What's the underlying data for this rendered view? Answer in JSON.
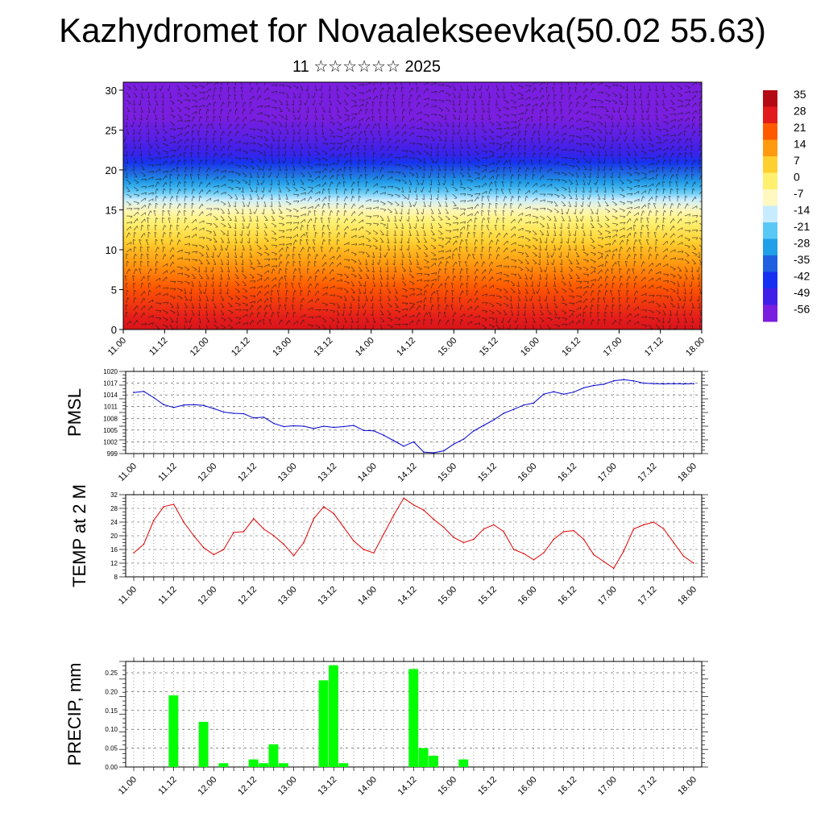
{
  "page": {
    "title": "Kazhydromet for Novaalekseevka(50.02 55.63)",
    "subtitle": "11 ☆☆☆☆☆☆ 2025"
  },
  "time_ticks": [
    "11.00",
    "11.12",
    "12.00",
    "12.12",
    "13.00",
    "13.12",
    "14.00",
    "14.12",
    "15.00",
    "15.12",
    "16.00",
    "16.12",
    "17.00",
    "17.12",
    "18.00"
  ],
  "chart_data": [
    {
      "type": "heatmap",
      "x_ticks": [
        "11.00",
        "11.12",
        "12.00",
        "12.12",
        "13.00",
        "13.12",
        "14.00",
        "14.12",
        "15.00",
        "15.12",
        "16.00",
        "16.12",
        "17.00",
        "17.12",
        "18.00"
      ],
      "y_ticks": [
        "0",
        "5",
        "10",
        "15",
        "20",
        "25",
        "30"
      ],
      "ylim": [
        0,
        31
      ],
      "colorbar_labels": [
        "35",
        "28",
        "21",
        "14",
        "7",
        "0",
        "-7",
        "-14",
        "-21",
        "-28",
        "-35",
        "-42",
        "-49",
        "-56"
      ],
      "color_stops": [
        "#b40a14",
        "#e31a1c",
        "#ff5a00",
        "#ff9a10",
        "#ffd030",
        "#fff070",
        "#fff8c0",
        "#c8ecff",
        "#5ac8f5",
        "#20a0e8",
        "#2060e0",
        "#1530f0",
        "#4020e8",
        "#7a1ee0"
      ],
      "height_profile": [
        {
          "level": 0,
          "value": 30
        },
        {
          "level": 5,
          "value": 22
        },
        {
          "level": 10,
          "value": 10
        },
        {
          "level": 14,
          "value": -2
        },
        {
          "level": 16,
          "value": -12
        },
        {
          "level": 18,
          "value": -26
        },
        {
          "level": 20,
          "value": -36
        },
        {
          "level": 22,
          "value": -48
        },
        {
          "level": 24,
          "value": -52
        },
        {
          "level": 26,
          "value": -55
        },
        {
          "level": 28,
          "value": -60
        },
        {
          "level": 31,
          "value": -62
        }
      ]
    },
    {
      "type": "line",
      "ylabel": "PMSL",
      "ylim": [
        999,
        1020
      ],
      "y_ticks": [
        999,
        1002,
        1005,
        1008,
        1011,
        1014,
        1017,
        1020
      ],
      "color": "#0000cc",
      "series": [
        {
          "values": [
            1014.6,
            1014.9,
            1013.3,
            1011.5,
            1010.8,
            1011.4,
            1011.5,
            1011.3,
            1010.5,
            1009.6,
            1009.3,
            1009.2,
            1008.1,
            1008.3,
            1006.7,
            1005.9,
            1006.1,
            1006.0,
            1005.4,
            1006.0,
            1005.7,
            1005.9,
            1006.2,
            1004.9,
            1004.8,
            1003.7,
            1002.3,
            1000.9,
            1002.0,
            999.4,
            999.2,
            999.7,
            1001.4,
            1002.7,
            1004.8,
            1006.2,
            1007.6,
            1009.3,
            1010.3,
            1011.4,
            1011.9,
            1014.2,
            1014.8,
            1014.2,
            1014.7,
            1015.8,
            1016.4,
            1016.7,
            1017.6,
            1017.9,
            1017.6,
            1017.0,
            1016.9,
            1016.8,
            1016.9,
            1016.8,
            1016.9
          ]
        }
      ]
    },
    {
      "type": "line",
      "ylabel": "TEMP at 2 M",
      "ylim": [
        8,
        32
      ],
      "y_ticks": [
        8,
        12,
        16,
        20,
        24,
        28,
        32
      ],
      "color": "#e00000",
      "series": [
        {
          "values": [
            15.0,
            17.5,
            24.5,
            28.5,
            29.2,
            24.0,
            20.0,
            16.5,
            14.5,
            16.0,
            21.0,
            21.2,
            25.0,
            22.0,
            20.0,
            17.5,
            14.2,
            18.0,
            25.0,
            28.5,
            26.5,
            22.5,
            18.5,
            16.0,
            15.0,
            20.5,
            26.0,
            31.0,
            29.0,
            27.5,
            24.8,
            22.5,
            19.5,
            18.0,
            19.0,
            22.0,
            23.2,
            21.2,
            16.0,
            14.8,
            13.0,
            15.0,
            19.0,
            21.2,
            21.5,
            19.0,
            14.5,
            12.5,
            10.5,
            15.5,
            22.0,
            23.2,
            24.0,
            22.0,
            18.0,
            14.0,
            12.0
          ]
        }
      ]
    },
    {
      "type": "bar",
      "ylabel": "PRECIP, mm",
      "ylim": [
        0,
        0.28
      ],
      "y_ticks": [
        "0.00",
        "0.05",
        "0.10",
        "0.15",
        "0.20",
        "0.25"
      ],
      "color": "#00ff00",
      "values": [
        0,
        0,
        0,
        0,
        0.19,
        0,
        0,
        0.12,
        0,
        0.01,
        0,
        0,
        0.02,
        0.01,
        0.06,
        0.01,
        0,
        0,
        0,
        0.23,
        0.27,
        0.01,
        0,
        0,
        0,
        0,
        0,
        0,
        0.26,
        0.05,
        0.03,
        0,
        0,
        0.02,
        0,
        0,
        0,
        0,
        0,
        0,
        0,
        0,
        0,
        0,
        0,
        0,
        0,
        0,
        0,
        0,
        0,
        0,
        0,
        0,
        0,
        0,
        0
      ]
    }
  ]
}
